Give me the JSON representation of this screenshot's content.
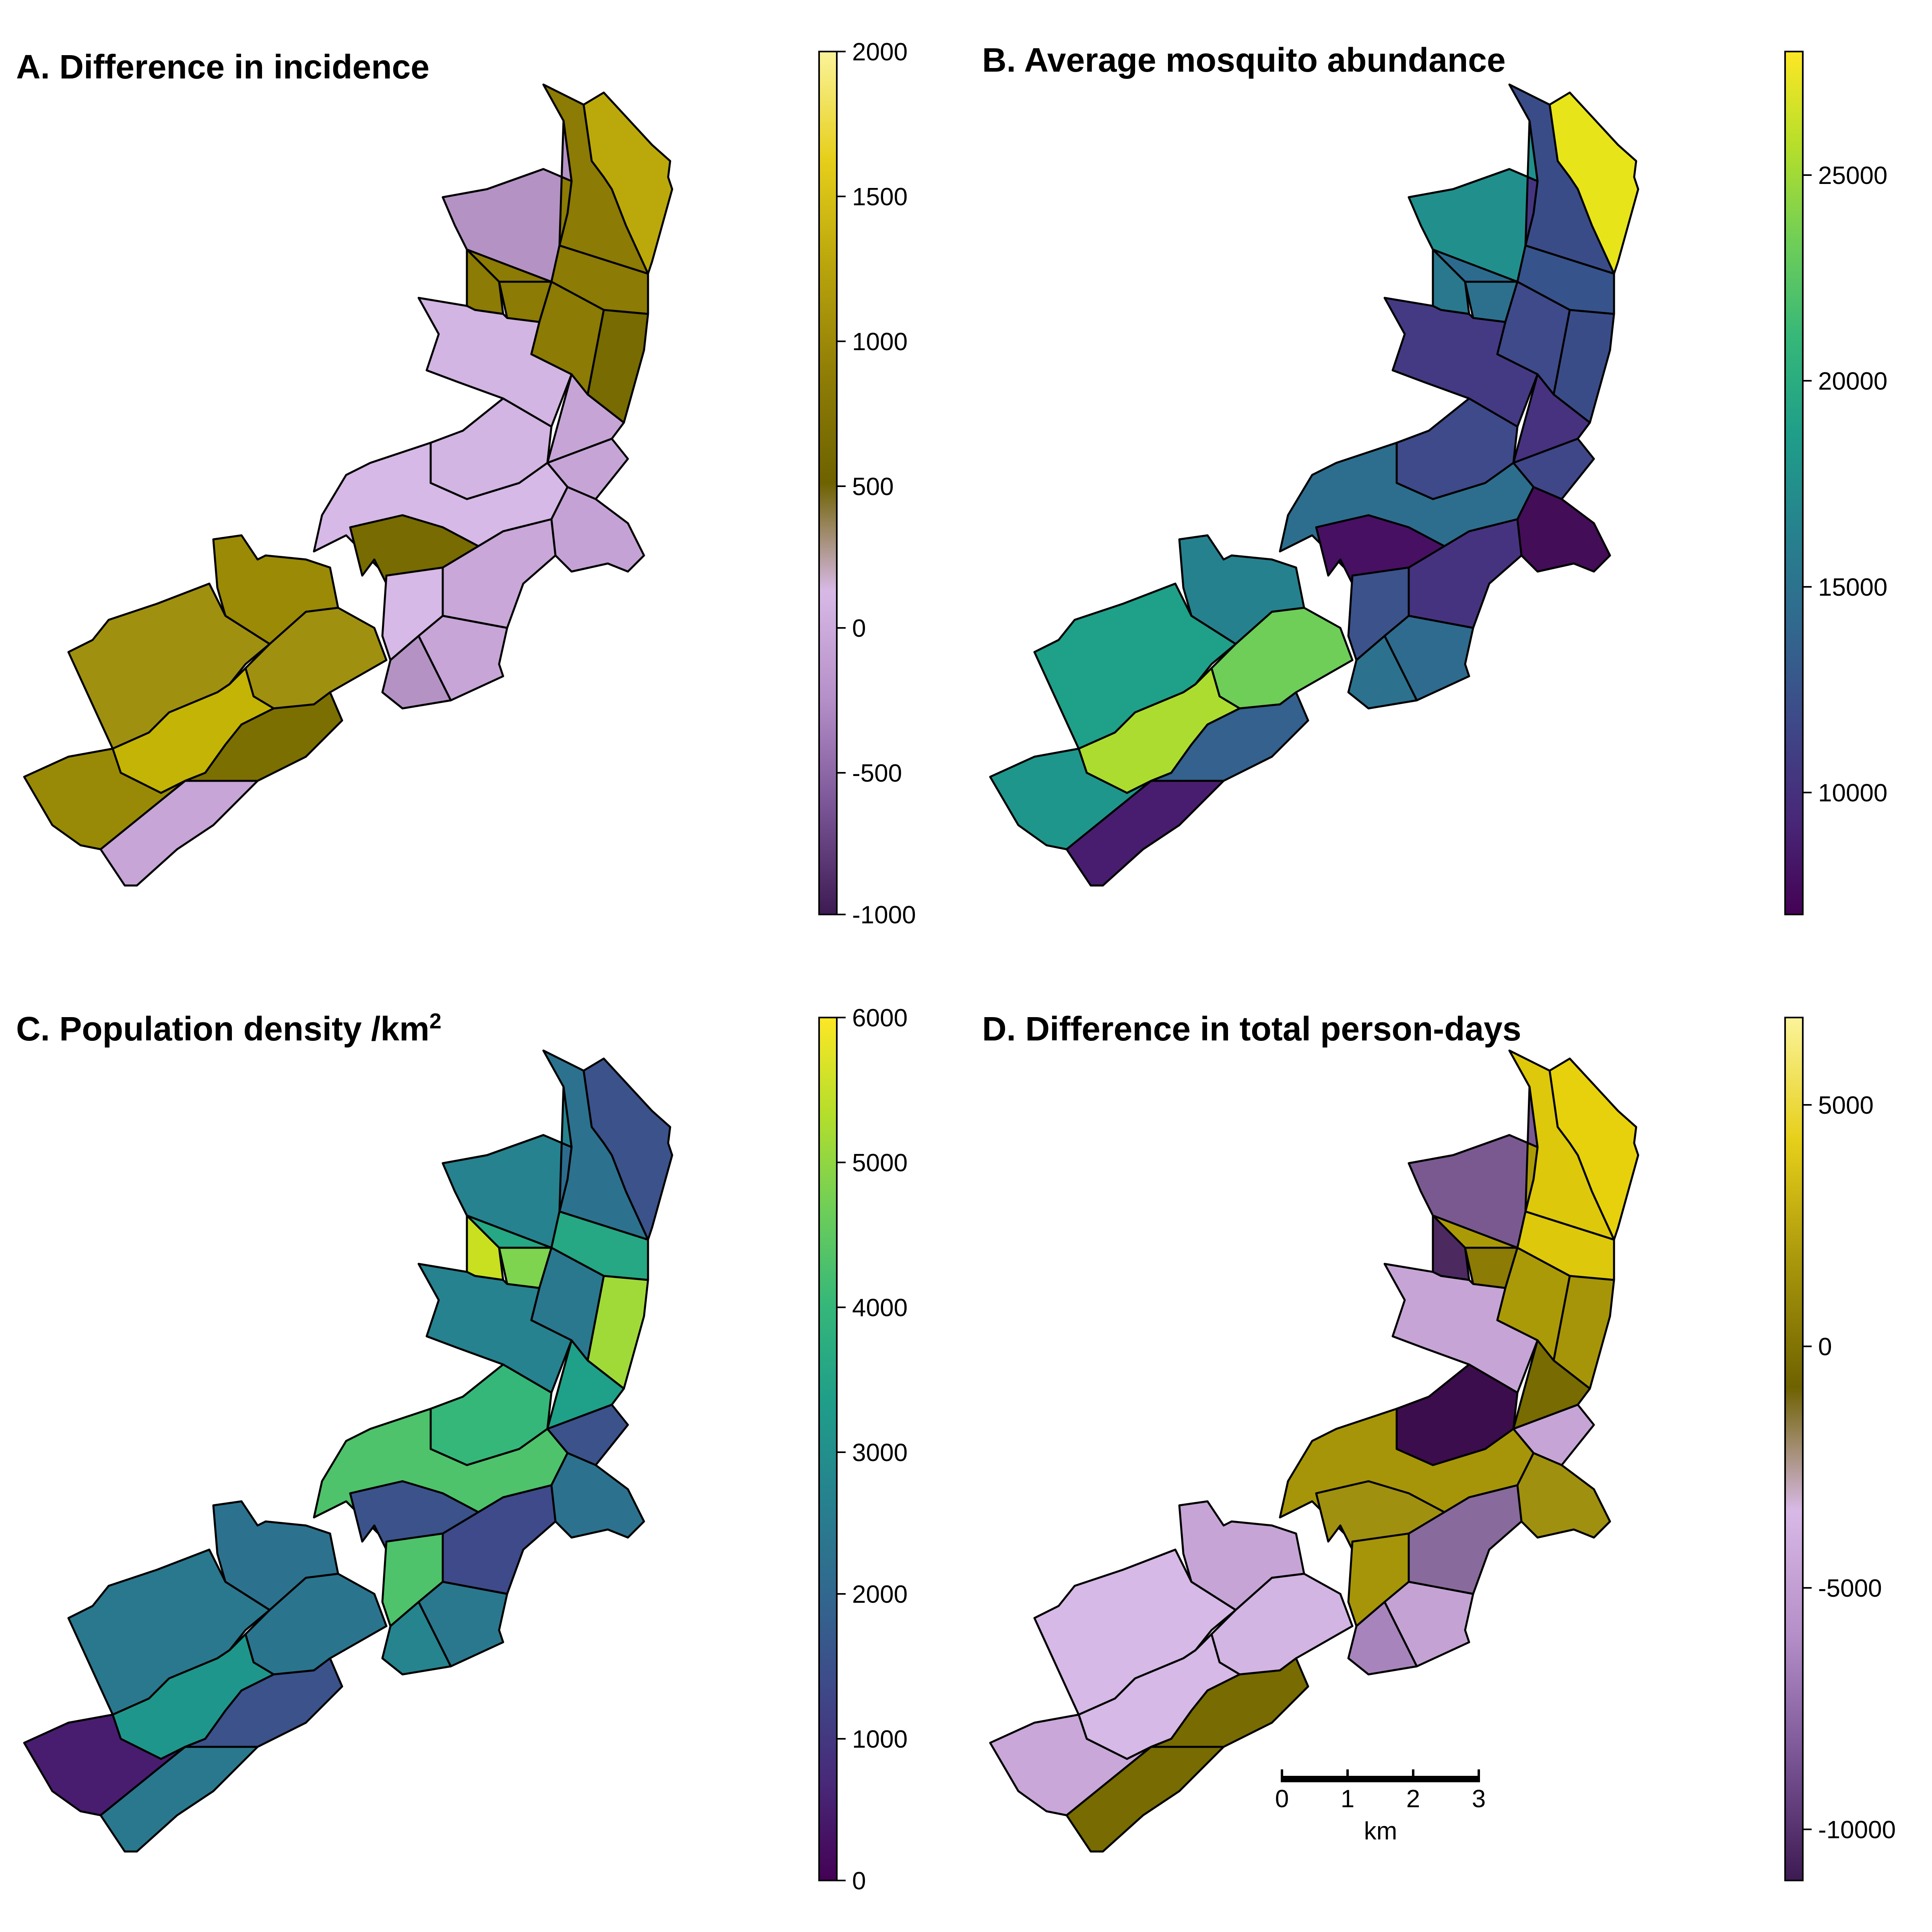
{
  "panels": [
    {
      "id": "A",
      "title": "A. Difference in incidence",
      "title_sup": "",
      "legend_ticks": [
        "2000",
        "1500",
        "1000",
        "500",
        "0",
        "-500",
        "-1000"
      ],
      "legend_stops": [
        "#fbf39a",
        "#e6cf1a",
        "#b9a40c",
        "#8f7d06",
        "#6e6200",
        "#d8b9e6",
        "#b58fc8",
        "#7a5596",
        "#3d1a52"
      ],
      "region_colors": [
        "#bba90c",
        "#8c7b04",
        "#8c7b04",
        "#8c7b04",
        "#b493c4",
        "#8c7b04",
        "#8c7b04",
        "#776b02",
        "#8c7b04",
        "#8c7b04",
        "#d2b5e2",
        "#c6a5d6",
        "#c6a5d6",
        "#d2b5e2",
        "#d6b9e6",
        "#c5a2d5",
        "#776b02",
        "#c9a7d9",
        "#d6b9e6",
        "#c7a5d7",
        "#b493c4",
        "#9a8a06",
        "#a09010",
        "#a09010",
        "#c4b406",
        "#988a06",
        "#7c6f02",
        "#c7a5d7"
      ]
    },
    {
      "id": "B",
      "title": "B. Average mosquito abundance",
      "title_sup": "",
      "legend_ticks": [
        "25000",
        "20000",
        "15000",
        "10000"
      ],
      "legend_stops": [
        "#fde725",
        "#b5de2b",
        "#6ece58",
        "#35b779",
        "#1f9e89",
        "#26828e",
        "#31688e",
        "#3e4989",
        "#482878",
        "#440154"
      ],
      "region_colors": [
        "#e8e41a",
        "#3a4c88",
        "#453581",
        "#2c6b8e",
        "#21908d",
        "#36538b",
        "#2a788e",
        "#3a4c88",
        "#2d708e",
        "#3e4a89",
        "#443a83",
        "#46327e",
        "#3f4788",
        "#3e4a89",
        "#2d6e8e",
        "#440d57",
        "#471063",
        "#46337f",
        "#3b528b",
        "#2e6b8e",
        "#2c728e",
        "#26818e",
        "#1fa088",
        "#6ece58",
        "#addc30",
        "#1f968b",
        "#34618d",
        "#481d6f"
      ]
    },
    {
      "id": "C",
      "title": "C. Population density /km",
      "title_sup": "2",
      "legend_ticks": [
        "6000",
        "5000",
        "4000",
        "3000",
        "2000",
        "1000",
        "0"
      ],
      "legend_stops": [
        "#fde725",
        "#b5de2b",
        "#6ece58",
        "#35b779",
        "#1f9e89",
        "#26828e",
        "#31688e",
        "#3e4989",
        "#482878",
        "#440154"
      ],
      "region_colors": [
        "#3b528b",
        "#2c728e",
        "#2c6b8e",
        "#25a883",
        "#26828e",
        "#25a883",
        "#c8e020",
        "#a0da39",
        "#7ed34f",
        "#2a788e",
        "#26828e",
        "#1fa088",
        "#3b528b",
        "#35b779",
        "#4ec36b",
        "#2c728e",
        "#3b528b",
        "#3e4a89",
        "#4ec36b",
        "#2a788e",
        "#25848e",
        "#2c728e",
        "#2a788e",
        "#2b748e",
        "#1f968b",
        "#481d6f",
        "#3b528b",
        "#2a788e"
      ]
    },
    {
      "id": "D",
      "title": "D. Difference in total person-days",
      "title_sup": "",
      "legend_ticks": [
        "5000",
        "0",
        "-5000",
        "-10000"
      ],
      "legend_stops": [
        "#fbf39a",
        "#e6cf1a",
        "#a8960b",
        "#6e6200",
        "#d8b9e6",
        "#b58fc8",
        "#7a5596",
        "#3d1a52"
      ],
      "region_colors": [
        "#e7d10c",
        "#ddc80c",
        "#ab9a08",
        "#ab9a08",
        "#7a5990",
        "#ddc80c",
        "#4c2a60",
        "#a69508",
        "#8c7b04",
        "#ab9a08",
        "#c6a5d6",
        "#776b02",
        "#c6a5d6",
        "#3c0d4d",
        "#a69508",
        "#a09010",
        "#a09010",
        "#886a9c",
        "#a69508",
        "#c4a3d4",
        "#a884bc",
        "#c6a5d6",
        "#d6b9e6",
        "#d2b5e2",
        "#d6b9e6",
        "#c9a7d9",
        "#776b02",
        "#776b02"
      ]
    }
  ],
  "scale_bar": {
    "ticks": [
      "0",
      "1",
      "2",
      "3"
    ],
    "unit": "km"
  }
}
